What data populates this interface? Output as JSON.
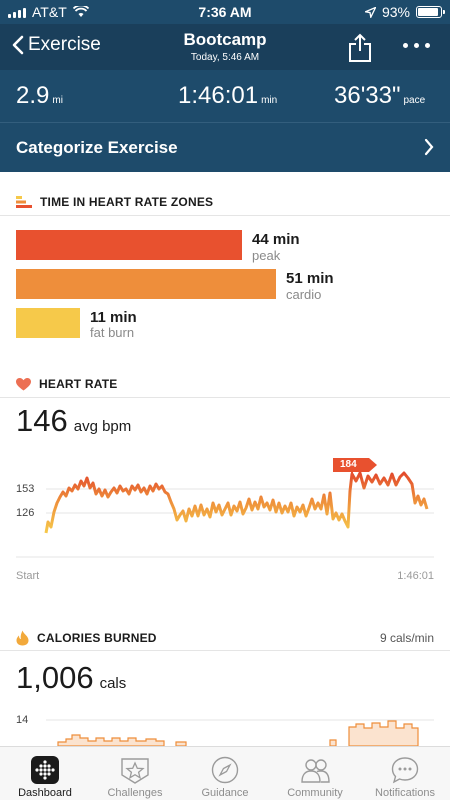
{
  "status": {
    "carrier": "AT&T",
    "time": "7:36 AM",
    "battery": "93%",
    "battery_level": 0.93
  },
  "nav": {
    "back_label": "Exercise",
    "title": "Bootcamp",
    "subtitle": "Today, 5:46 AM"
  },
  "stats": {
    "distance": {
      "value": "2.9",
      "unit": "mi"
    },
    "duration": {
      "value": "1:46:01",
      "unit": "min"
    },
    "pace": {
      "value": "36'33\"",
      "unit": "pace"
    }
  },
  "categorize_label": "Categorize Exercise",
  "zones": {
    "title": "TIME IN HEART RATE ZONES",
    "items": [
      {
        "value": "44 min",
        "label": "peak",
        "minutes": 44,
        "color": "#e8512f"
      },
      {
        "value": "51 min",
        "label": "cardio",
        "minutes": 51,
        "color": "#ee8e3b"
      },
      {
        "value": "11 min",
        "label": "fat burn",
        "minutes": 11,
        "color": "#f6c94a"
      }
    ]
  },
  "heart_rate": {
    "title": "HEART RATE",
    "avg_value": "146",
    "avg_unit": "avg bpm",
    "y_ticks": [
      "153",
      "126"
    ],
    "peak_badge": "184",
    "x_start": "Start",
    "x_end": "1:46:01"
  },
  "calories": {
    "title": "CALORIES BURNED",
    "rate": "9 cals/min",
    "value": "1,006",
    "unit": "cals",
    "y_tick": "14"
  },
  "tabs": [
    {
      "label": "Dashboard",
      "icon": "dashboard-icon",
      "active": true
    },
    {
      "label": "Challenges",
      "icon": "challenges-star-icon",
      "active": false
    },
    {
      "label": "Guidance",
      "icon": "compass-icon",
      "active": false
    },
    {
      "label": "Community",
      "icon": "community-people-icon",
      "active": false
    },
    {
      "label": "Notifications",
      "icon": "chat-bubble-icon",
      "active": false
    }
  ],
  "colors": {
    "header_bg": "#1e4b6b",
    "peak": "#e8512f",
    "cardio": "#ee8e3b",
    "fat_burn": "#f6c94a",
    "calorie_fill": "#fbe3cf",
    "calorie_line": "#ee8e3b"
  }
}
